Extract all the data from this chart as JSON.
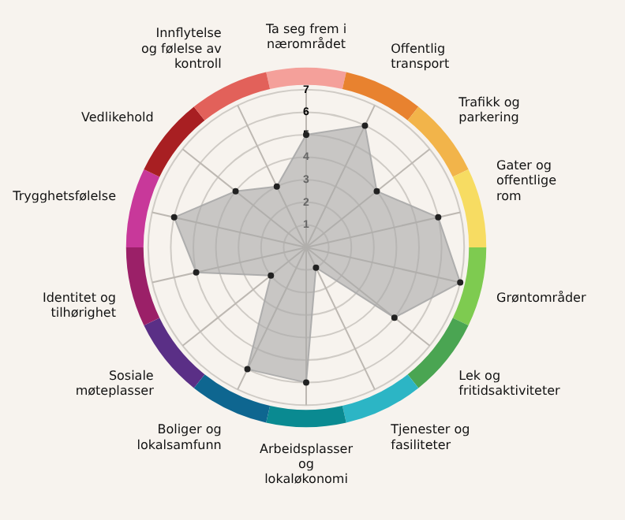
{
  "chart_data": {
    "type": "radar",
    "categories": [
      "Ta seg frem i nærområdet",
      "Offentlig transport",
      "Trafikk og parkering",
      "Gater og offentlige rom",
      "Grøntområder",
      "Lek og fritidsaktiviteter",
      "Tjenester og fasiliteter",
      "Arbeidsplasser og lokaløkonomi",
      "Boliger og lokalsamfunn",
      "Sosiale møteplasser",
      "Identitet og tilhørighet",
      "Trygghetsfølelse",
      "Vedlikehold",
      "Innflytelse og følelse av kontroll"
    ],
    "series": [
      {
        "color": "#a9a9a9",
        "values": [
          5,
          6,
          4,
          6,
          7,
          5,
          1,
          6,
          6,
          2,
          5,
          6,
          4,
          3
        ]
      }
    ],
    "ylim": [
      0,
      7
    ],
    "yticks": [
      1,
      2,
      3,
      4,
      5,
      6,
      7
    ],
    "grid": true,
    "marker": "circle"
  }
}
